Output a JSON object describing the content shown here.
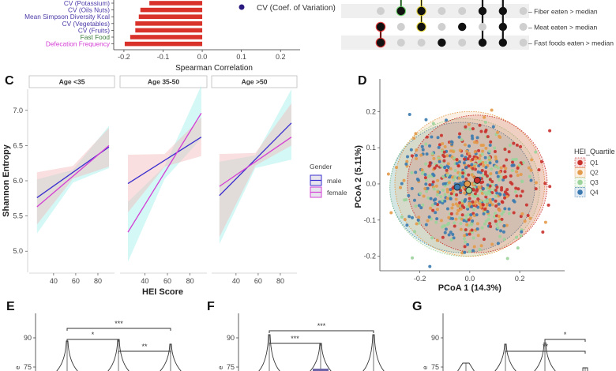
{
  "chart_data": [
    {
      "panel": "B (partial)",
      "type": "bar",
      "orientation": "horizontal",
      "categories": [
        "CV (Potassium)",
        "CV (Oils Nuts)",
        "Mean Simpson Diversity Kcal",
        "CV (Vegetables)",
        "CV (Fruits)",
        "Fast Food",
        "Defecation Frequency"
      ],
      "category_colors": [
        "#4b3aa8",
        "#4b3aa8",
        "#4b3aa8",
        "#4b3aa8",
        "#4b3aa8",
        "#3a7a3a",
        "#d43fd4"
      ],
      "values": [
        -0.135,
        -0.158,
        -0.162,
        -0.171,
        -0.171,
        -0.184,
        -0.198
      ],
      "bar_color": "#d9322b",
      "xlabel": "Spearman Correlation",
      "xticks": [
        "-0.2",
        "-0.1",
        "0.0",
        "0.1",
        "0.2"
      ],
      "xlim": [
        -0.22,
        0.25
      ],
      "legend": [
        {
          "label": "CV (Coef. of Variation)",
          "color": "#2a1a80"
        }
      ]
    },
    {
      "panel": "upset-matrix (partial)",
      "type": "table",
      "rows": [
        "Fiber eaten > median",
        "Meat eaten > median",
        "Fast foods eaten > median"
      ],
      "columns": [
        {
          "set": [
            false,
            true,
            true
          ],
          "highlight": "#e02020"
        },
        {
          "set": [
            true,
            false,
            false
          ],
          "highlight": "#5bd05b"
        },
        {
          "set": [
            true,
            true,
            false
          ],
          "highlight": "#e0d020"
        },
        {
          "set": [
            false,
            false,
            true
          ],
          "highlight": null
        },
        {
          "set": [
            false,
            true,
            false
          ],
          "highlight": null
        },
        {
          "set": [
            true,
            false,
            true
          ],
          "highlight": null
        },
        {
          "set": [
            true,
            true,
            true
          ],
          "highlight": null
        },
        {
          "set": [
            false,
            false,
            false
          ],
          "highlight": null
        }
      ]
    },
    {
      "panel": "C",
      "type": "line",
      "ylabel": "Shannon Entropy",
      "xlabel": "HEI Score",
      "ylim": [
        4.7,
        7.3
      ],
      "yticks": [
        "5.0",
        "5.5",
        "6.0",
        "6.5",
        "7.0"
      ],
      "xlim": [
        18,
        95
      ],
      "xticks": [
        "40",
        "60",
        "80"
      ],
      "legend_title": "Gender",
      "facets": [
        {
          "label": "Age <35",
          "series": [
            {
              "name": "male",
              "color": "#3b2fcf",
              "x": [
                25,
                90
              ],
              "y": [
                5.76,
                6.48
              ],
              "ci_low": [
                5.38,
                6.2
              ],
              "ci_high": [
                6.12,
                6.75
              ]
            },
            {
              "name": "female",
              "color": "#d43fd4",
              "x": [
                25,
                90
              ],
              "y": [
                5.63,
                6.5
              ],
              "ci_low": [
                5.25,
                6.18
              ],
              "ci_high": [
                6.02,
                6.78
              ]
            }
          ]
        },
        {
          "label": "Age 35-50",
          "series": [
            {
              "name": "male",
              "color": "#3b2fcf",
              "x": [
                25,
                90
              ],
              "y": [
                5.96,
                6.62
              ],
              "ci_low": [
                5.55,
                6.35
              ],
              "ci_high": [
                6.37,
                6.9
              ]
            },
            {
              "name": "female",
              "color": "#d43fd4",
              "x": [
                25,
                90
              ],
              "y": [
                5.27,
                6.96
              ],
              "ci_low": [
                4.85,
                6.6
              ],
              "ci_high": [
                5.7,
                7.35
              ]
            }
          ]
        },
        {
          "label": "Age >50",
          "series": [
            {
              "name": "male",
              "color": "#3b2fcf",
              "x": [
                25,
                90
              ],
              "y": [
                5.79,
                6.82
              ],
              "ci_low": [
                5.2,
                6.5
              ],
              "ci_high": [
                6.38,
                7.1
              ]
            },
            {
              "name": "female",
              "color": "#d43fd4",
              "x": [
                25,
                90
              ],
              "y": [
                5.92,
                6.62
              ],
              "ci_low": [
                5.1,
                6.3
              ],
              "ci_high": [
                6.27,
                7.3
              ]
            }
          ]
        }
      ]
    },
    {
      "panel": "D",
      "type": "scatter",
      "xlabel": "PCoA 1 (14.3%)",
      "ylabel": "PCoA 2 (5.11%)",
      "xlim": [
        -0.36,
        0.38
      ],
      "ylim": [
        -0.24,
        0.29
      ],
      "xticks": [
        "-0.2",
        "0.0",
        "0.2"
      ],
      "yticks": [
        "-0.2",
        "-0.1",
        "0.0",
        "0.1",
        "0.2"
      ],
      "legend_title": "HEI_Quartile",
      "groups": [
        {
          "name": "Q1",
          "color": "#c9302c",
          "centroid": [
            0.03,
            0.01
          ],
          "ellipse_center": [
            0.03,
            0.0
          ],
          "ellipse_radius": [
            0.28,
            0.19
          ]
        },
        {
          "name": "Q2",
          "color": "#e39a4a",
          "centroid": [
            -0.01,
            0.0
          ],
          "ellipse_center": [
            0.0,
            0.0
          ],
          "ellipse_radius": [
            0.3,
            0.2
          ]
        },
        {
          "name": "Q3",
          "color": "#9bd39b",
          "centroid": [
            -0.003,
            -0.018
          ],
          "ellipse_center": [
            -0.02,
            -0.01
          ],
          "ellipse_radius": [
            0.3,
            0.19
          ]
        },
        {
          "name": "Q4",
          "color": "#3a7ab0",
          "centroid": [
            -0.05,
            -0.009
          ],
          "ellipse_center": [
            -0.03,
            -0.01
          ],
          "ellipse_radius": [
            0.29,
            0.18
          ]
        }
      ]
    },
    {
      "panel": "E",
      "type": "violin (partial)",
      "yticks": [
        "75",
        "90"
      ],
      "significance": [
        {
          "groups": [
            1,
            3
          ],
          "label": "***"
        },
        {
          "groups": [
            1,
            2
          ],
          "label": "*"
        },
        {
          "groups": [
            2,
            3
          ],
          "label": "**"
        }
      ]
    },
    {
      "panel": "F",
      "type": "violin (partial)",
      "yticks": [
        "75",
        "90"
      ],
      "significance": [
        {
          "groups": [
            1,
            3
          ],
          "label": "***"
        },
        {
          "groups": [
            1,
            2
          ],
          "label": "***"
        }
      ]
    },
    {
      "panel": "G",
      "type": "violin (partial)",
      "yticks": [
        "75",
        "90"
      ],
      "significance": [
        {
          "groups": [
            3,
            4
          ],
          "label": "*"
        },
        {
          "groups": [
            2,
            4
          ],
          "label": "**"
        }
      ]
    }
  ],
  "panel_letters": {
    "c": "C",
    "d": "D",
    "e": "E",
    "f": "F",
    "g": "G"
  }
}
